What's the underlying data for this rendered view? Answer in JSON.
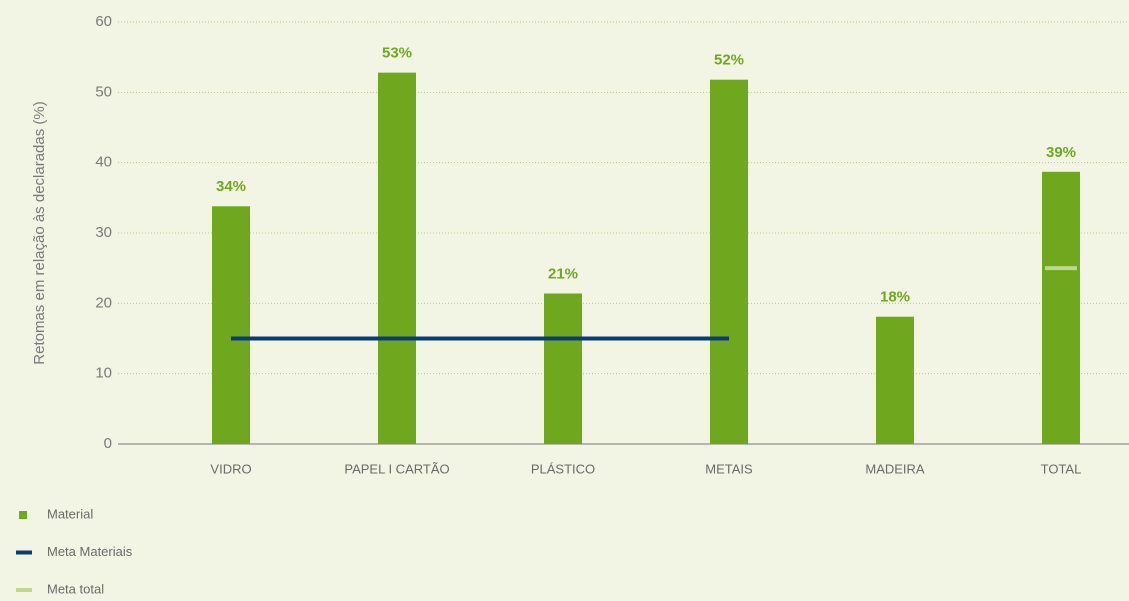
{
  "chart_data": {
    "type": "bar",
    "y_label": "Retomas em relação às declaradas (%)",
    "categories": [
      "VIDRO",
      "PAPEL I CARTÃO",
      "PLÁSTICO",
      "METAIS",
      "MADEIRA",
      "TOTAL"
    ],
    "series": [
      {
        "name": "Material",
        "color": "#6fa81f",
        "kind": "bar",
        "values": [
          33.8,
          52.8,
          21.4,
          51.8,
          18.1,
          38.7
        ],
        "value_labels": [
          "34%",
          "53%",
          "21%",
          "52%",
          "18%",
          "39%"
        ]
      },
      {
        "name": "Meta Materiais",
        "color": "#0b3a7a",
        "kind": "line",
        "values": [
          15,
          15,
          15,
          15,
          null,
          null
        ]
      },
      {
        "name": "Meta total",
        "color": "#bcd98a",
        "kind": "dash",
        "values": [
          null,
          null,
          null,
          null,
          null,
          25
        ]
      }
    ],
    "ylim": [
      0,
      60
    ],
    "yticks": [
      0,
      10,
      20,
      30,
      40,
      50,
      60
    ],
    "grid": true
  }
}
